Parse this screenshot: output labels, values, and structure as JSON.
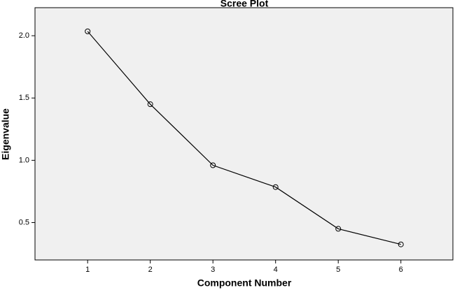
{
  "chart_data": {
    "type": "line",
    "title": "Scree Plot",
    "x_label": "Component Number",
    "y_label": "Eigenvalue",
    "x": [
      1,
      2,
      3,
      4,
      5,
      6
    ],
    "values": [
      2.035,
      1.45,
      0.96,
      0.785,
      0.45,
      0.325
    ],
    "color": "#000000",
    "xlim": [
      0.16,
      6.83
    ],
    "xticks": [
      1,
      2,
      3,
      4,
      5,
      6
    ],
    "ylim": [
      0.2,
      2.225
    ],
    "yticks": [
      {
        "value": 0.5,
        "label": "0.5"
      },
      {
        "value": 1,
        "label": "1.0"
      },
      1.5,
      {
        "value": 2,
        "label": "2.0"
      }
    ]
  }
}
